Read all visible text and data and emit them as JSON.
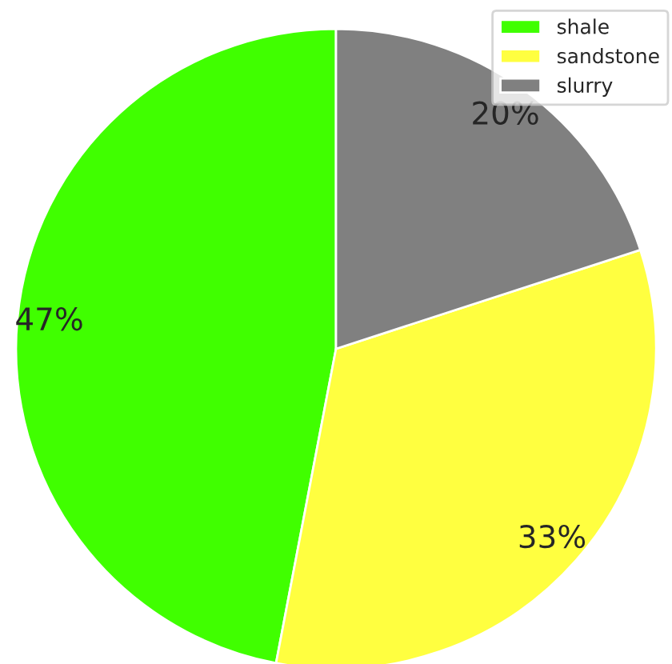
{
  "chart_data": {
    "type": "pie",
    "categories": [
      "shale",
      "sandstone",
      "slurry"
    ],
    "values": [
      47,
      33,
      20
    ],
    "colors": [
      "#40ff00",
      "#ffff40",
      "#808080"
    ],
    "value_labels": [
      "47%",
      "33%",
      "20%"
    ],
    "legend": "top right"
  }
}
